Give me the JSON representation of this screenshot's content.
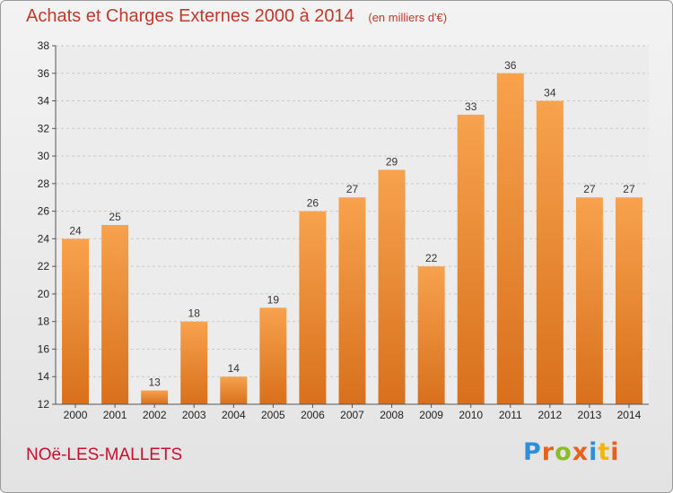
{
  "title": "Achats et Charges Externes 2000 à 2014",
  "subtitle": "(en milliers d'€)",
  "commune": "NOë-LES-MALLETS",
  "logo": {
    "letters": [
      "P",
      "r",
      "o",
      "x",
      "i",
      "t",
      "i"
    ],
    "colors": [
      "#2e8fd8",
      "#e8601c",
      "#8bbd2b",
      "#e8601c",
      "#2e8fd8",
      "#f2b705",
      "#e8601c"
    ]
  },
  "chart_data": {
    "type": "bar",
    "title": "Achats et Charges Externes 2000 à 2014",
    "subtitle": "(en milliers d'€)",
    "categories": [
      "2000",
      "2001",
      "2002",
      "2003",
      "2004",
      "2005",
      "2006",
      "2007",
      "2008",
      "2009",
      "2010",
      "2011",
      "2012",
      "2013",
      "2014"
    ],
    "values": [
      24,
      25,
      13,
      18,
      14,
      19,
      26,
      27,
      29,
      22,
      33,
      36,
      34,
      27,
      27
    ],
    "ylim": [
      12,
      38
    ],
    "yticks": [
      12,
      14,
      16,
      18,
      20,
      22,
      24,
      26,
      28,
      30,
      32,
      34,
      36,
      38
    ],
    "grid": true,
    "bar_color": "#f0913a"
  }
}
